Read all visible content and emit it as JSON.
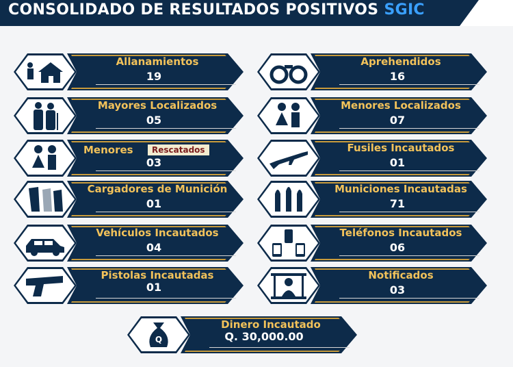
{
  "header": {
    "title": "CONSOLIDADO DE RESULTADOS POSITIVOS",
    "accent": "SGIC"
  },
  "cards": [
    {
      "title": "Allanamientos",
      "value": "19",
      "icon": "house-raid-icon"
    },
    {
      "title": "Aprehendidos",
      "value": "16",
      "icon": "handcuffs-icon"
    },
    {
      "title": "Mayores Localizados",
      "value": "05",
      "icon": "elderly-couple-icon"
    },
    {
      "title": "Menores Localizados",
      "value": "07",
      "icon": "children-icon"
    },
    {
      "title": "Menores",
      "badge": "Rescatados",
      "value": "03",
      "icon": "children-icon"
    },
    {
      "title": "Fusiles Incautados",
      "value": "01",
      "icon": "rifle-icon"
    },
    {
      "title": "Cargadores de Munición",
      "value": "01",
      "icon": "magazines-icon"
    },
    {
      "title": "Municiones Incautadas",
      "value": "71",
      "icon": "bullets-icon"
    },
    {
      "title": "Vehículos Incautados",
      "value": "04",
      "icon": "car-icon"
    },
    {
      "title": "Teléfonos Incautados",
      "value": "06",
      "icon": "phones-icon"
    },
    {
      "title": "Pistolas Incautadas",
      "value": "01",
      "icon": "pistol-icon"
    },
    {
      "title": "Notificados",
      "value": "03",
      "icon": "jail-icon"
    }
  ],
  "money": {
    "title": "Dinero Incautado",
    "value": "Q. 30,000.00",
    "icon": "money-bag-icon"
  },
  "colors": {
    "navy": "#0d2b4a",
    "gold": "#f2c25a",
    "accent": "#3aa0ff"
  }
}
